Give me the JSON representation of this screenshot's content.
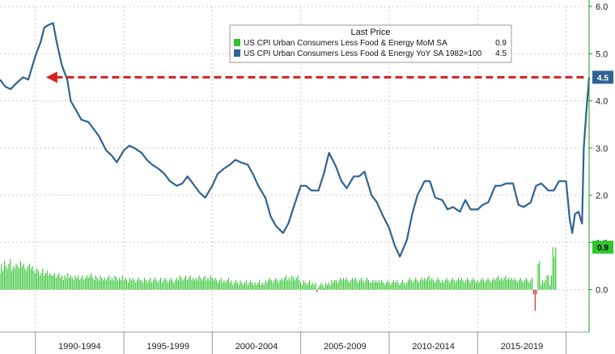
{
  "colors": {
    "yoy_line": "#2f6394",
    "mom_bars_pos": "#2fc42f",
    "mom_bars_neg": "#d02020",
    "arrow": "#d42020",
    "grid": "#cccccc",
    "right_axis": "#1a9a1a"
  },
  "chart_data": {
    "type": "line",
    "title": "",
    "xlabel": "",
    "ylabel": "",
    "ylim": [
      -0.9,
      6.0
    ],
    "y_ticks": [
      0.0,
      1.0,
      2.0,
      3.0,
      4.0,
      5.0,
      6.0
    ],
    "y_tick_labels": [
      "0.0",
      "1.0",
      "2.0",
      "3.0",
      "4.0",
      "5.0",
      "6.0"
    ],
    "x_range": [
      1988.0,
      2021.3
    ],
    "x_period_labels": [
      "1990-1994",
      "1995-1999",
      "2000-2004",
      "2005-2009",
      "2010-2014",
      "2015-2019"
    ],
    "x_period_bounds": [
      1990,
      1995,
      2000,
      2005,
      2010,
      2015,
      2020
    ],
    "grid": true,
    "legend": {
      "title": "Last Price",
      "placement": "top-center",
      "entries": [
        {
          "label": "US CPI Urban Consumers Less Food & Energy MoM SA",
          "value": "0.9",
          "color": "#2fc42f"
        },
        {
          "label": "US CPI Urban Consumers Less Food & Energy YoY SA 1982=100",
          "value": "4.5",
          "color": "#2f6394"
        }
      ]
    },
    "last_value_badges": [
      {
        "label": "4.5",
        "value": 4.5,
        "color": "#2f6394"
      },
      {
        "label": "0.9",
        "value": 0.9,
        "color": "#2fc42f"
      }
    ],
    "annotation": {
      "type": "dashed-arrow",
      "value": 4.5,
      "from_x": 2021.0,
      "to_x": 1990.6
    },
    "series": [
      {
        "name": "US CPI Urban Consumers Less Food & Energy YoY SA 1982=100",
        "kind": "line",
        "points": [
          [
            1988.0,
            4.45
          ],
          [
            1988.3,
            4.3
          ],
          [
            1988.6,
            4.25
          ],
          [
            1989.0,
            4.4
          ],
          [
            1989.3,
            4.5
          ],
          [
            1989.6,
            4.45
          ],
          [
            1990.0,
            4.95
          ],
          [
            1990.3,
            5.25
          ],
          [
            1990.5,
            5.55
          ],
          [
            1990.7,
            5.6
          ],
          [
            1991.0,
            5.65
          ],
          [
            1991.2,
            5.25
          ],
          [
            1991.5,
            4.75
          ],
          [
            1991.8,
            4.45
          ],
          [
            1992.0,
            4.0
          ],
          [
            1992.3,
            3.8
          ],
          [
            1992.6,
            3.6
          ],
          [
            1993.0,
            3.55
          ],
          [
            1993.3,
            3.4
          ],
          [
            1993.6,
            3.25
          ],
          [
            1994.0,
            2.95
          ],
          [
            1994.3,
            2.85
          ],
          [
            1994.6,
            2.7
          ],
          [
            1995.0,
            2.95
          ],
          [
            1995.3,
            3.05
          ],
          [
            1995.6,
            3.0
          ],
          [
            1996.0,
            2.9
          ],
          [
            1996.3,
            2.75
          ],
          [
            1996.6,
            2.65
          ],
          [
            1997.0,
            2.55
          ],
          [
            1997.3,
            2.45
          ],
          [
            1997.6,
            2.3
          ],
          [
            1998.0,
            2.2
          ],
          [
            1998.3,
            2.25
          ],
          [
            1998.6,
            2.4
          ],
          [
            1999.0,
            2.2
          ],
          [
            1999.3,
            2.05
          ],
          [
            1999.6,
            1.95
          ],
          [
            2000.0,
            2.2
          ],
          [
            2000.3,
            2.45
          ],
          [
            2000.6,
            2.55
          ],
          [
            2001.0,
            2.65
          ],
          [
            2001.3,
            2.75
          ],
          [
            2001.6,
            2.7
          ],
          [
            2002.0,
            2.65
          ],
          [
            2002.3,
            2.45
          ],
          [
            2002.6,
            2.2
          ],
          [
            2003.0,
            1.95
          ],
          [
            2003.3,
            1.55
          ],
          [
            2003.6,
            1.35
          ],
          [
            2004.0,
            1.2
          ],
          [
            2004.3,
            1.4
          ],
          [
            2004.6,
            1.75
          ],
          [
            2005.0,
            2.2
          ],
          [
            2005.3,
            2.2
          ],
          [
            2005.6,
            2.1
          ],
          [
            2006.0,
            2.1
          ],
          [
            2006.3,
            2.45
          ],
          [
            2006.6,
            2.9
          ],
          [
            2007.0,
            2.6
          ],
          [
            2007.3,
            2.3
          ],
          [
            2007.6,
            2.15
          ],
          [
            2008.0,
            2.4
          ],
          [
            2008.3,
            2.4
          ],
          [
            2008.6,
            2.5
          ],
          [
            2009.0,
            2.0
          ],
          [
            2009.3,
            1.85
          ],
          [
            2009.6,
            1.6
          ],
          [
            2010.0,
            1.3
          ],
          [
            2010.3,
            0.95
          ],
          [
            2010.6,
            0.7
          ],
          [
            2011.0,
            1.05
          ],
          [
            2011.3,
            1.6
          ],
          [
            2011.6,
            2.0
          ],
          [
            2012.0,
            2.3
          ],
          [
            2012.3,
            2.3
          ],
          [
            2012.6,
            1.95
          ],
          [
            2013.0,
            1.9
          ],
          [
            2013.3,
            1.7
          ],
          [
            2013.6,
            1.75
          ],
          [
            2014.0,
            1.65
          ],
          [
            2014.3,
            1.9
          ],
          [
            2014.6,
            1.7
          ],
          [
            2015.0,
            1.7
          ],
          [
            2015.3,
            1.8
          ],
          [
            2015.6,
            1.85
          ],
          [
            2016.0,
            2.2
          ],
          [
            2016.3,
            2.2
          ],
          [
            2016.6,
            2.25
          ],
          [
            2017.0,
            2.25
          ],
          [
            2017.3,
            1.8
          ],
          [
            2017.6,
            1.75
          ],
          [
            2018.0,
            1.85
          ],
          [
            2018.3,
            2.2
          ],
          [
            2018.6,
            2.25
          ],
          [
            2019.0,
            2.1
          ],
          [
            2019.3,
            2.1
          ],
          [
            2019.6,
            2.3
          ],
          [
            2020.0,
            2.3
          ],
          [
            2020.2,
            1.5
          ],
          [
            2020.35,
            1.2
          ],
          [
            2020.5,
            1.6
          ],
          [
            2020.7,
            1.65
          ],
          [
            2020.9,
            1.4
          ],
          [
            2021.0,
            3.0
          ],
          [
            2021.15,
            3.8
          ],
          [
            2021.3,
            4.5
          ]
        ]
      },
      {
        "name": "US CPI Urban Consumers Less Food & Energy MoM SA",
        "kind": "bar",
        "note_from": "monthly bars",
        "start": 1988.0,
        "step_months": 1,
        "values": [
          0.35,
          0.55,
          0.4,
          0.6,
          0.5,
          0.45,
          0.55,
          0.65,
          0.4,
          0.5,
          0.45,
          0.55,
          0.5,
          0.45,
          0.6,
          0.5,
          0.55,
          0.45,
          0.4,
          0.5,
          0.55,
          0.45,
          0.5,
          0.4,
          0.35,
          0.45,
          0.4,
          0.3,
          0.35,
          0.45,
          0.3,
          0.35,
          0.4,
          0.3,
          0.35,
          0.3,
          0.3,
          0.35,
          0.25,
          0.3,
          0.35,
          0.25,
          0.3,
          0.2,
          0.3,
          0.25,
          0.35,
          0.25,
          0.3,
          0.25,
          0.2,
          0.3,
          0.25,
          0.3,
          0.2,
          0.25,
          0.3,
          0.2,
          0.25,
          0.3,
          0.25,
          0.3,
          0.35,
          0.25,
          0.2,
          0.3,
          0.25,
          0.2,
          0.3,
          0.25,
          0.2,
          0.25,
          0.2,
          0.25,
          0.3,
          0.2,
          0.25,
          0.2,
          0.3,
          0.25,
          0.2,
          0.25,
          0.2,
          0.3,
          0.2,
          0.25,
          0.2,
          0.15,
          0.25,
          0.2,
          0.25,
          0.2,
          0.15,
          0.2,
          0.25,
          0.2,
          0.2,
          0.15,
          0.25,
          0.2,
          0.15,
          0.2,
          0.25,
          0.15,
          0.2,
          0.25,
          0.2,
          0.15,
          0.2,
          0.25,
          0.15,
          0.2,
          0.25,
          0.2,
          0.15,
          0.2,
          0.25,
          0.2,
          0.15,
          0.2,
          0.25,
          0.2,
          0.3,
          0.25,
          0.2,
          0.25,
          0.3,
          0.2,
          0.25,
          0.3,
          0.2,
          0.25,
          0.2,
          0.25,
          0.2,
          0.3,
          0.25,
          0.2,
          0.25,
          0.3,
          0.2,
          0.25,
          0.2,
          0.3,
          0.25,
          0.2,
          0.25,
          0.2,
          0.15,
          0.2,
          0.25,
          0.15,
          0.2,
          0.15,
          0.2,
          0.25,
          0.15,
          0.2,
          0.1,
          0.15,
          0.2,
          0.15,
          0.1,
          0.2,
          0.15,
          0.1,
          0.15,
          0.2,
          0.1,
          0.15,
          0.2,
          0.15,
          0.1,
          0.15,
          0.1,
          0.15,
          0.2,
          0.1,
          0.15,
          0.1,
          0.2,
          0.15,
          0.2,
          0.25,
          0.2,
          0.15,
          0.2,
          0.25,
          0.2,
          0.15,
          0.2,
          0.25,
          0.2,
          0.25,
          0.3,
          0.2,
          0.25,
          0.2,
          0.3,
          0.25,
          0.2,
          0.25,
          0.3,
          0.2,
          0.15,
          0.1,
          0.2,
          0.15,
          0.1,
          0.15,
          0.2,
          0.1,
          0.15,
          0.1,
          0.15,
          -0.05,
          0.05,
          0.1,
          0.15,
          0.1,
          0.05,
          0.15,
          0.1,
          0.15,
          0.1,
          0.2,
          0.15,
          0.2,
          0.2,
          0.15,
          0.2,
          0.25,
          0.2,
          0.25,
          0.2,
          0.25,
          0.2,
          0.15,
          0.2,
          0.25,
          0.2,
          0.25,
          0.2,
          0.15,
          0.2,
          0.25,
          0.2,
          0.15,
          0.2,
          0.25,
          0.2,
          0.15,
          0.15,
          0.2,
          0.15,
          0.2,
          0.15,
          0.2,
          0.15,
          0.2,
          0.15,
          0.1,
          0.15,
          0.2,
          0.15,
          0.1,
          0.15,
          0.2,
          0.15,
          0.2,
          0.15,
          0.1,
          0.15,
          0.2,
          0.15,
          0.1,
          0.15,
          0.2,
          0.25,
          0.2,
          0.15,
          0.2,
          0.25,
          0.2,
          0.15,
          0.2,
          0.25,
          0.2,
          0.25,
          0.2,
          0.25,
          0.3,
          0.2,
          0.25,
          0.2,
          0.15,
          0.2,
          0.25,
          0.2,
          0.15,
          0.2,
          0.15,
          0.2,
          0.25,
          0.2,
          0.15,
          0.2,
          0.25,
          0.2,
          0.15,
          0.2,
          0.25,
          0.2,
          0.25,
          0.2,
          0.15,
          0.2,
          0.25,
          0.2,
          0.15,
          0.2,
          0.25,
          0.2,
          0.15,
          0.2,
          0.15,
          0.2,
          0.25,
          0.2,
          0.15,
          0.2,
          0.25,
          0.2,
          0.15,
          0.2,
          0.25,
          0.2,
          0.25,
          0.3,
          0.2,
          0.25,
          0.2,
          0.25,
          0.3,
          0.2,
          0.25,
          0.2,
          0.25,
          0.2,
          0.25,
          0.2,
          0.15,
          0.2,
          0.25,
          0.2,
          0.15,
          0.2,
          0.25,
          0.2,
          0.15,
          0.2,
          0.25,
          -0.1,
          -0.45,
          -0.1,
          0.55,
          0.6,
          0.1,
          0.2,
          0.15,
          0.2,
          0.3,
          0.3,
          0.1,
          0.3,
          0.9,
          0.7,
          0.9
        ]
      }
    ]
  }
}
